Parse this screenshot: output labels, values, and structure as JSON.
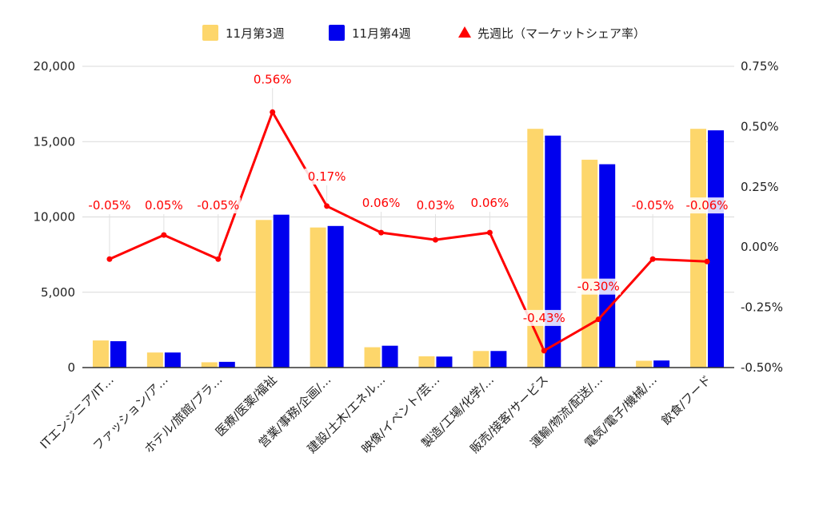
{
  "chart_data": {
    "type": "bar",
    "categories": [
      "ITエンジニア/IT…",
      "ファッション/ア…",
      "ホテル/旅館/ブラ…",
      "医療/医薬/福祉",
      "営業/事務/企画/…",
      "建設/土木/エネル…",
      "映像/イベント/芸…",
      "製造/工場/化学/…",
      "販売/接客/サービス",
      "運輸/物流/配送/…",
      "電気/電子/機械/…",
      "飲食/フード"
    ],
    "series": [
      {
        "name": "11月第3週",
        "type": "bar",
        "axis": "left",
        "values": [
          1800,
          1000,
          350,
          9800,
          9300,
          1350,
          750,
          1100,
          15850,
          13800,
          450,
          15850
        ]
      },
      {
        "name": "11月第4週",
        "type": "bar",
        "axis": "left",
        "values": [
          1750,
          1000,
          380,
          10150,
          9400,
          1450,
          730,
          1100,
          15400,
          13500,
          470,
          15750
        ]
      },
      {
        "name": "先週比（マーケットシェア率）",
        "type": "line",
        "axis": "right",
        "values": [
          -0.05,
          0.05,
          -0.05,
          0.56,
          0.17,
          0.06,
          0.03,
          0.06,
          -0.43,
          -0.3,
          -0.05,
          -0.06
        ],
        "labels": [
          "-0.05%",
          "0.05%",
          "-0.05%",
          "0.56%",
          "0.17%",
          "0.06%",
          "0.03%",
          "0.06%",
          "-0.43%",
          "-0.30%",
          "-0.05%",
          "-0.06%"
        ]
      }
    ],
    "ylim_left": [
      0,
      20000
    ],
    "yticks_left": [
      0,
      5000,
      10000,
      15000,
      20000
    ],
    "ytick_labels_left": [
      "0",
      "5,000",
      "10,000",
      "15,000",
      "20,000"
    ],
    "ylim_right": [
      -0.5,
      0.75
    ],
    "yticks_right": [
      -0.5,
      -0.25,
      0,
      0.25,
      0.5,
      0.75
    ],
    "ytick_labels_right": [
      "-0.50%",
      "-0.25%",
      "0.00%",
      "0.25%",
      "0.50%",
      "0.75%"
    ],
    "grid": true,
    "legend_position": "top-center",
    "colors": {
      "series1": "#fdd66b",
      "series2": "#0000ee",
      "line": "#ff0000",
      "grid": "#d9d9d9",
      "axis": "#333333"
    }
  }
}
